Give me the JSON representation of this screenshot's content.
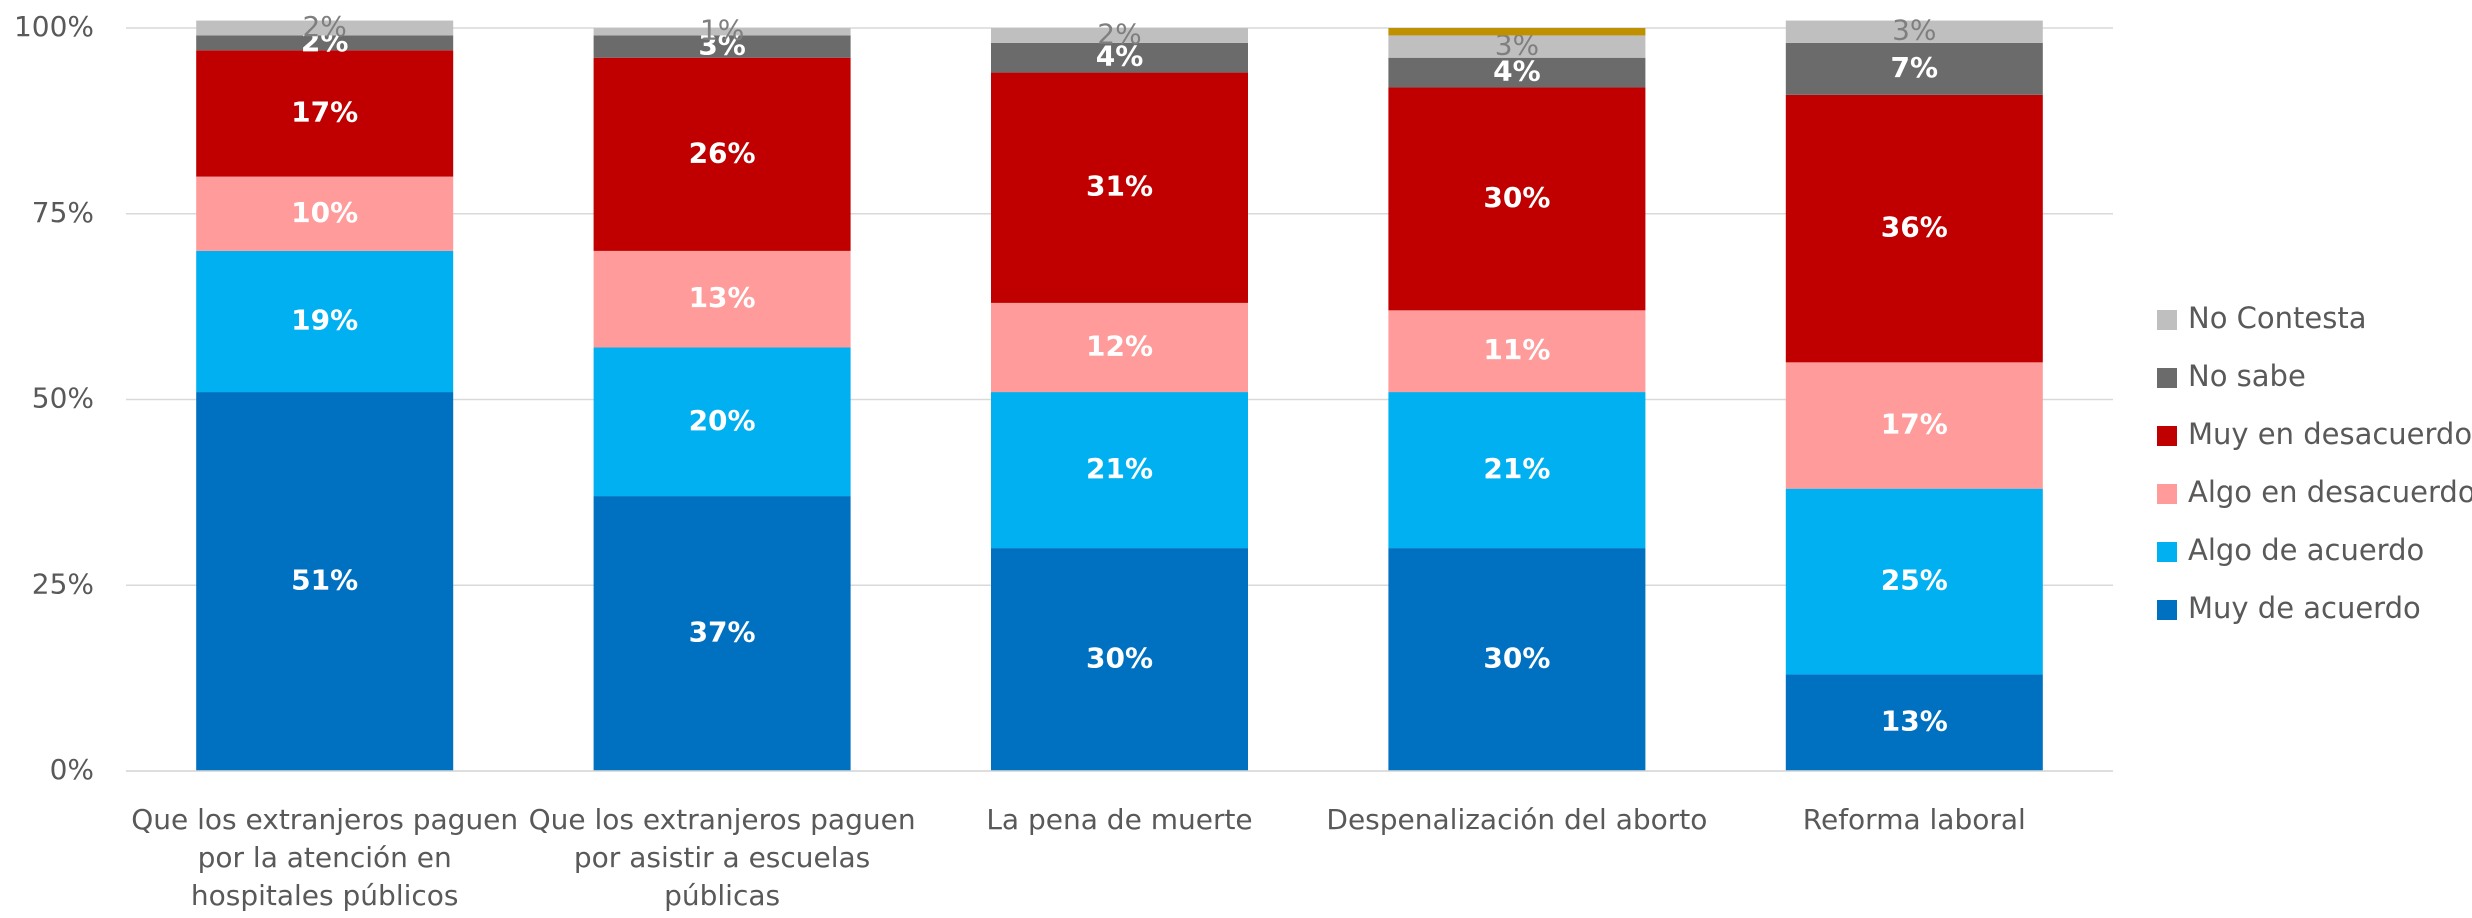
{
  "chart_data": {
    "type": "stacked_bar",
    "categories": [
      "Que los extranjeros paguen por la atención en hospitales públicos",
      "Que los extranjeros paguen por asistir a escuelas públicas",
      "La pena de muerte",
      "Despenalización del aborto",
      "Reforma laboral"
    ],
    "series": [
      {
        "name": "Muy de acuerdo",
        "color": "#0070c0",
        "label_color": "#ffffff",
        "values": [
          51,
          37,
          30,
          30,
          13
        ],
        "value_labels": [
          "51%",
          "37%",
          "30%",
          "30%",
          "13%"
        ]
      },
      {
        "name": "Algo de acuerdo",
        "color": "#00b0f0",
        "label_color": "#ffffff",
        "values": [
          19,
          20,
          21,
          21,
          25
        ],
        "value_labels": [
          "19%",
          "20%",
          "21%",
          "21%",
          "25%"
        ]
      },
      {
        "name": "Algo en desacuerdo",
        "color": "#ff9b9b",
        "label_color": "#ffffff",
        "values": [
          10,
          13,
          12,
          11,
          17
        ],
        "value_labels": [
          "10%",
          "13%",
          "12%",
          "11%",
          "17%"
        ]
      },
      {
        "name": "Muy en desacuerdo",
        "color": "#c00000",
        "label_color": "#ffffff",
        "values": [
          17,
          26,
          31,
          30,
          36
        ],
        "value_labels": [
          "17%",
          "26%",
          "31%",
          "30%",
          "36%"
        ]
      },
      {
        "name": "No sabe",
        "color": "#6b6b6b",
        "label_color": "#ffffff",
        "values": [
          2,
          3,
          4,
          4,
          7
        ],
        "value_labels": [
          "2%",
          "3%",
          "4%",
          "4%",
          "7%"
        ]
      },
      {
        "name": "No Contesta",
        "color": "#bfbfbf",
        "label_color": "#7f7f7f",
        "values": [
          2,
          1,
          2,
          3,
          3
        ],
        "value_labels": [
          "2%",
          "1%",
          "2%",
          "3%",
          "3%"
        ]
      },
      {
        "color": "#bf9000",
        "values": [
          null,
          null,
          null,
          1,
          null
        ]
      }
    ],
    "ylim": [
      0,
      100
    ],
    "yticks": [
      {
        "value": 0,
        "label": "0%"
      },
      {
        "value": 25,
        "label": "25%"
      },
      {
        "value": 50,
        "label": "50%"
      },
      {
        "value": 75,
        "label": "75%"
      },
      {
        "value": 100,
        "label": "100%"
      }
    ],
    "grid": true,
    "legend": "right"
  }
}
